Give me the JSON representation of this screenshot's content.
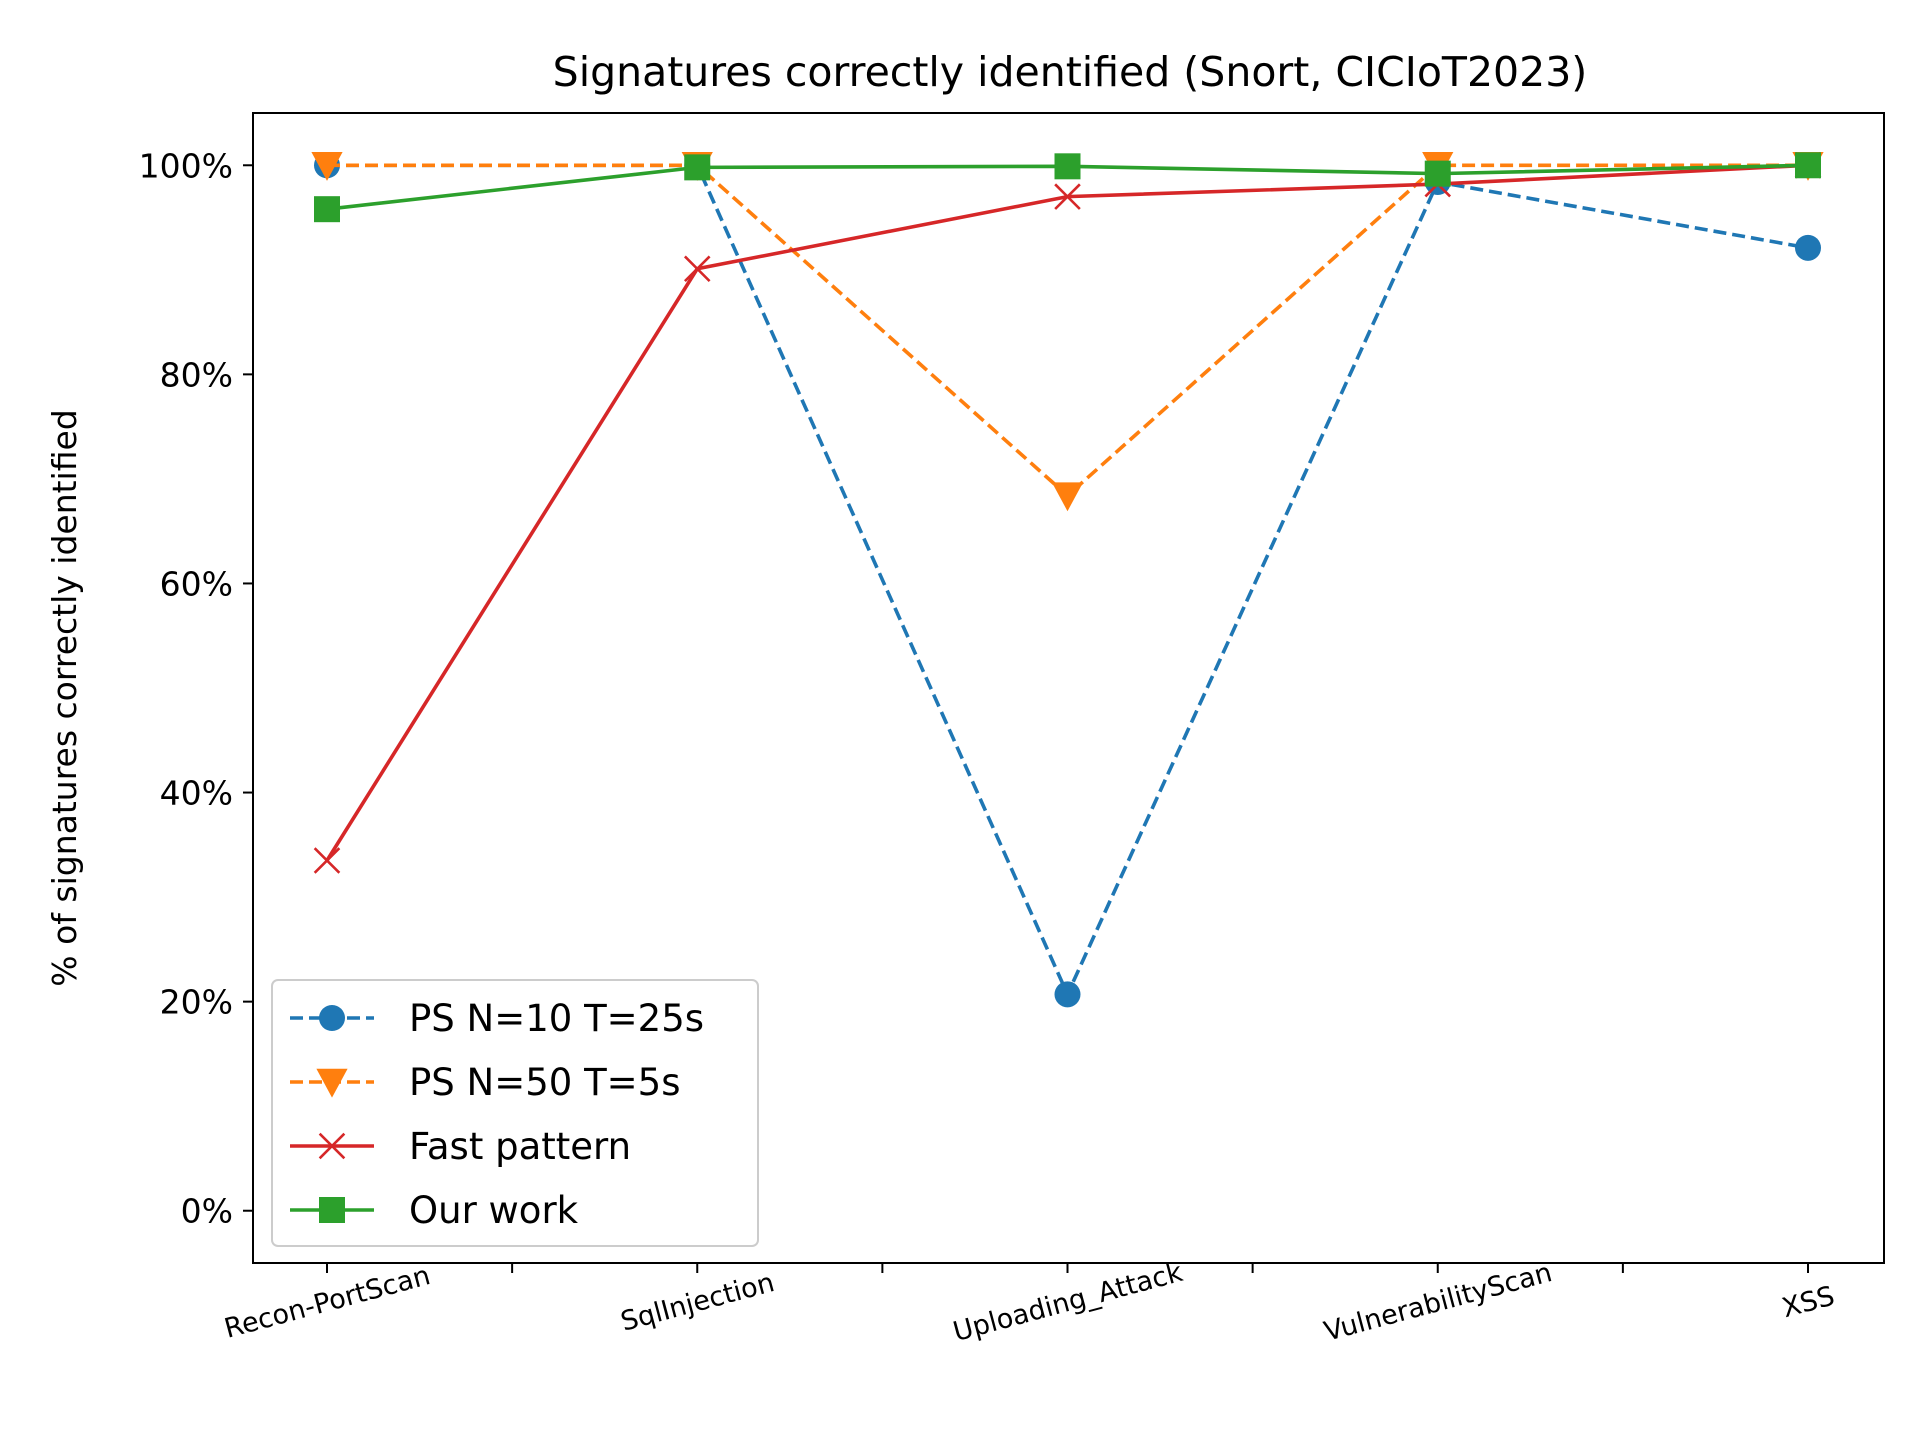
{
  "chart_data": {
    "type": "line",
    "title": "Signatures correctly identified (Snort, CICIoT2023)",
    "xlabel": "",
    "ylabel": "% of signatures correctly identified",
    "categories": [
      "Recon-PortScan",
      "SqlInjection",
      "Uploading_Attack",
      "VulnerabilityScan",
      "XSS"
    ],
    "ylim": [
      -5,
      105
    ],
    "yticks": [
      0,
      20,
      40,
      60,
      80,
      100
    ],
    "ytick_labels": [
      "0%",
      "20%",
      "40%",
      "60%",
      "80%",
      "100%"
    ],
    "legend_position": "lower-left",
    "grid": false,
    "series": [
      {
        "name": "PS N=10 T=25s",
        "values": [
          100,
          100,
          20.7,
          98.4,
          92.1
        ],
        "color": "#1f77b4",
        "linestyle": "dashed",
        "marker": "circle"
      },
      {
        "name": "PS N=50 T=5s",
        "values": [
          100,
          100,
          68.4,
          100,
          100
        ],
        "color": "#ff7f0e",
        "linestyle": "dashed",
        "marker": "triangle-down"
      },
      {
        "name": "Fast pattern",
        "values": [
          33.5,
          90.1,
          97.0,
          98.2,
          100
        ],
        "color": "#d62728",
        "linestyle": "solid",
        "marker": "x"
      },
      {
        "name": "Our work",
        "values": [
          95.8,
          99.8,
          99.9,
          99.2,
          100
        ],
        "color": "#2ca02c",
        "linestyle": "solid",
        "marker": "square"
      }
    ]
  }
}
